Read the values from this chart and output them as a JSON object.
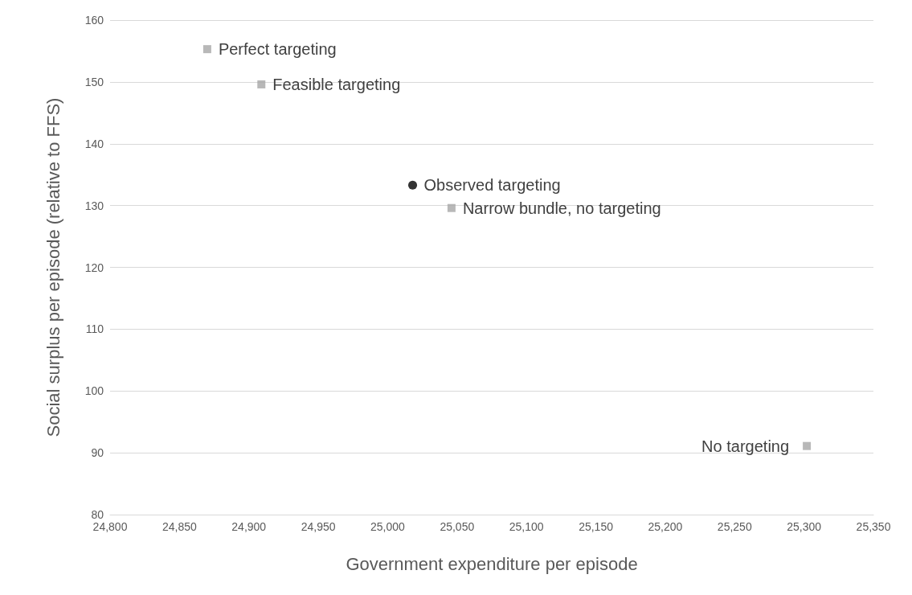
{
  "chart_data": {
    "type": "scatter",
    "xlabel": "Government expenditure per episode",
    "ylabel": "Social surplus per episode (relative to FFS)",
    "series": [
      {
        "color": "#a6a6a6",
        "marker": "square",
        "x": [
          24870,
          24909,
          25046,
          25302
        ],
        "values": [
          155.3,
          149.6,
          129.6,
          91.1
        ]
      },
      {
        "color": "#000000",
        "marker": "circle",
        "x": [
          25018
        ],
        "values": [
          133.3
        ]
      }
    ],
    "annotations": [
      {
        "text": "Perfect targeting",
        "x": 24870,
        "y": 155.3
      },
      {
        "text": "Feasible targeting",
        "x": 24909,
        "y": 149.6
      },
      {
        "text": "Observed targeting",
        "x": 25018,
        "y": 133.3
      },
      {
        "text": "Narrow bundle, no targeting",
        "x": 25046,
        "y": 129.6
      },
      {
        "text": "No targeting",
        "x": 25302,
        "y": 91.1
      }
    ],
    "xlim": [
      24800,
      25350
    ],
    "xticks": [
      {
        "value": 24800,
        "label": "24,800"
      },
      {
        "value": 24850,
        "label": "24,850"
      },
      {
        "value": 24900,
        "label": "24,900"
      },
      {
        "value": 24950,
        "label": "24,950"
      },
      {
        "value": 25000,
        "label": "25,000"
      },
      {
        "value": 25050,
        "label": "25,050"
      },
      {
        "value": 25100,
        "label": "25,100"
      },
      {
        "value": 25150,
        "label": "25,150"
      },
      {
        "value": 25200,
        "label": "25,200"
      },
      {
        "value": 25250,
        "label": "25,250"
      },
      {
        "value": 25300,
        "label": "25,300"
      },
      {
        "value": 25350,
        "label": "25,350"
      }
    ],
    "ylim": [
      80,
      160
    ],
    "yticks": [
      80,
      90,
      100,
      110,
      120,
      130,
      140,
      150,
      160
    ],
    "grid": "y"
  }
}
